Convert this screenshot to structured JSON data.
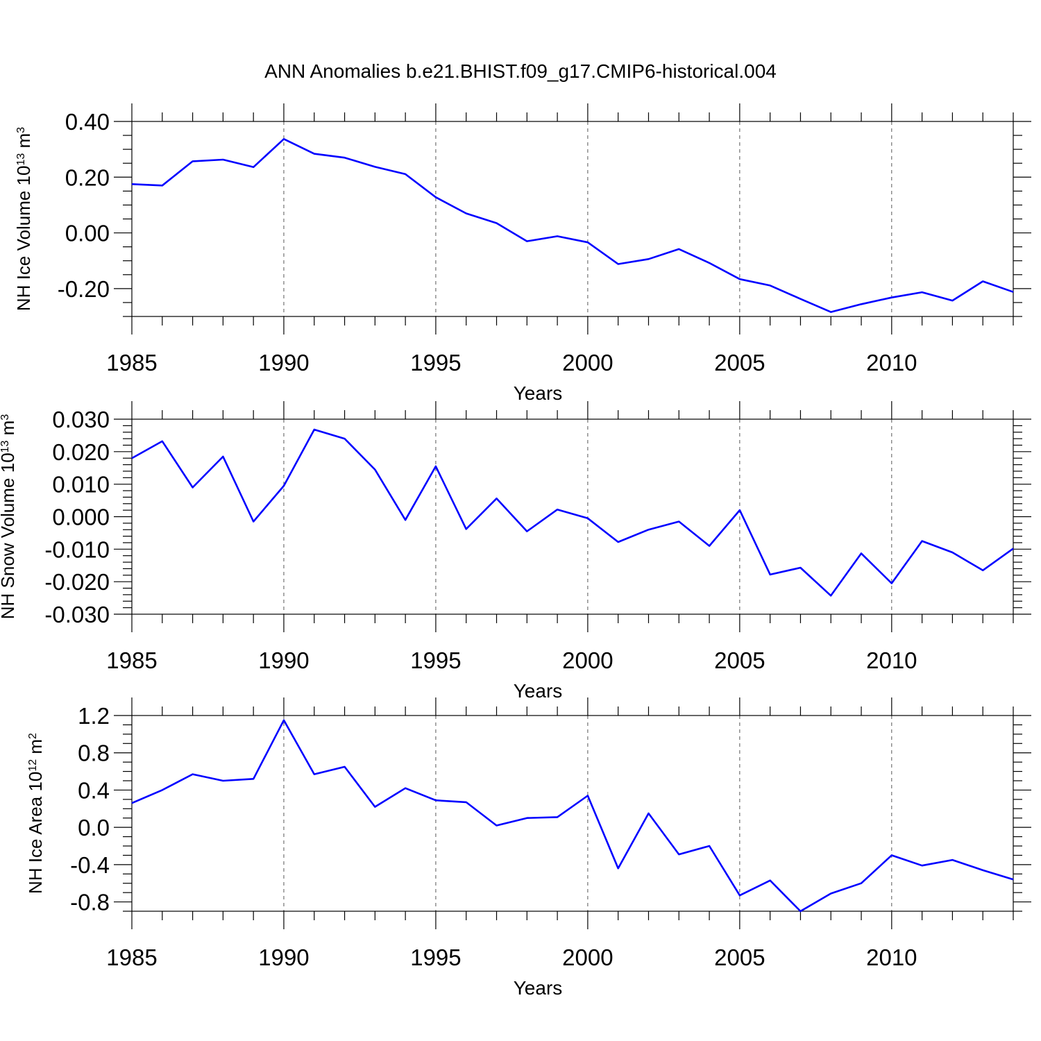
{
  "title": "ANN Anomalies b.e21.BHIST.f09_g17.CMIP6-historical.004",
  "line_color": "#0000ff",
  "chart_data": [
    {
      "type": "line",
      "xlabel": "Years",
      "ylabel": {
        "text": "NH Ice Volume 10",
        "sup": "13",
        "unit": " m",
        "unit_sup": "3"
      },
      "xlim": [
        1985,
        2014
      ],
      "ylim": [
        -0.3,
        0.4
      ],
      "x_ticks": [
        1985,
        1990,
        1995,
        2000,
        2005,
        2010
      ],
      "y_ticks": [
        -0.2,
        0.0,
        0.2,
        0.4
      ],
      "y_tick_labels": [
        "-0.20",
        "0.00",
        "0.20",
        "0.40"
      ],
      "y_minor_step": 0.05,
      "grid": "vertical dashed at major x ticks",
      "x": [
        1985,
        1986,
        1987,
        1988,
        1989,
        1990,
        1991,
        1992,
        1993,
        1994,
        1995,
        1996,
        1997,
        1998,
        1999,
        2000,
        2001,
        2002,
        2003,
        2004,
        2005,
        2006,
        2007,
        2008,
        2009,
        2010,
        2011,
        2012,
        2013,
        2014
      ],
      "y": [
        0.175,
        0.17,
        0.257,
        0.263,
        0.236,
        0.337,
        0.284,
        0.27,
        0.237,
        0.211,
        0.128,
        0.07,
        0.035,
        -0.03,
        -0.012,
        -0.034,
        -0.112,
        -0.094,
        -0.058,
        -0.108,
        -0.166,
        -0.189,
        -0.237,
        -0.284,
        -0.256,
        -0.232,
        -0.213,
        -0.243,
        -0.174,
        -0.212
      ]
    },
    {
      "type": "line",
      "xlabel": "Years",
      "ylabel": {
        "text": "NH Snow Volume 10",
        "sup": "13",
        "unit": " m",
        "unit_sup": "3"
      },
      "xlim": [
        1985,
        2014
      ],
      "ylim": [
        -0.03,
        0.03
      ],
      "x_ticks": [
        1985,
        1990,
        1995,
        2000,
        2005,
        2010
      ],
      "y_ticks": [
        -0.03,
        -0.02,
        -0.01,
        0.0,
        0.01,
        0.02,
        0.03
      ],
      "y_tick_labels": [
        "-0.030",
        "-0.020",
        "-0.010",
        "0.000",
        "0.010",
        "0.020",
        "0.030"
      ],
      "y_minor_step": 0.002,
      "grid": "vertical dashed at major x ticks",
      "x": [
        1985,
        1986,
        1987,
        1988,
        1989,
        1990,
        1991,
        1992,
        1993,
        1994,
        1995,
        1996,
        1997,
        1998,
        1999,
        2000,
        2001,
        2002,
        2003,
        2004,
        2005,
        2006,
        2007,
        2008,
        2009,
        2010,
        2011,
        2012,
        2013,
        2014
      ],
      "y": [
        0.018,
        0.0232,
        0.009,
        0.0185,
        -0.0015,
        0.0095,
        0.0268,
        0.024,
        0.0145,
        -0.001,
        0.0155,
        -0.0038,
        0.0056,
        -0.0045,
        0.0022,
        -0.0005,
        -0.0078,
        -0.004,
        -0.0015,
        -0.009,
        0.002,
        -0.0178,
        -0.0157,
        -0.0243,
        -0.0113,
        -0.0205,
        -0.0075,
        -0.011,
        -0.0165,
        -0.0098
      ]
    },
    {
      "type": "line",
      "xlabel": "Years",
      "ylabel": {
        "text": "NH Ice Area 10",
        "sup": "12",
        "unit": " m",
        "unit_sup": "2"
      },
      "xlim": [
        1985,
        2014
      ],
      "ylim": [
        -0.9,
        1.2
      ],
      "x_ticks": [
        1985,
        1990,
        1995,
        2000,
        2005,
        2010
      ],
      "y_ticks": [
        -0.8,
        -0.4,
        0.0,
        0.4,
        0.8,
        1.2
      ],
      "y_tick_labels": [
        "-0.8",
        "-0.4",
        "0.0",
        "0.4",
        "0.8",
        "1.2"
      ],
      "y_minor_step": 0.1,
      "grid": "vertical dashed at major x ticks",
      "x": [
        1985,
        1986,
        1987,
        1988,
        1989,
        1990,
        1991,
        1992,
        1993,
        1994,
        1995,
        1996,
        1997,
        1998,
        1999,
        2000,
        2001,
        2002,
        2003,
        2004,
        2005,
        2006,
        2007,
        2008,
        2009,
        2010,
        2011,
        2012,
        2013,
        2014
      ],
      "y": [
        0.26,
        0.4,
        0.57,
        0.5,
        0.52,
        1.15,
        0.57,
        0.65,
        0.22,
        0.42,
        0.29,
        0.27,
        0.02,
        0.1,
        0.11,
        0.34,
        -0.44,
        0.15,
        -0.29,
        -0.2,
        -0.73,
        -0.57,
        -0.9,
        -0.71,
        -0.6,
        -0.3,
        -0.41,
        -0.35,
        -0.46,
        -0.56
      ]
    }
  ]
}
